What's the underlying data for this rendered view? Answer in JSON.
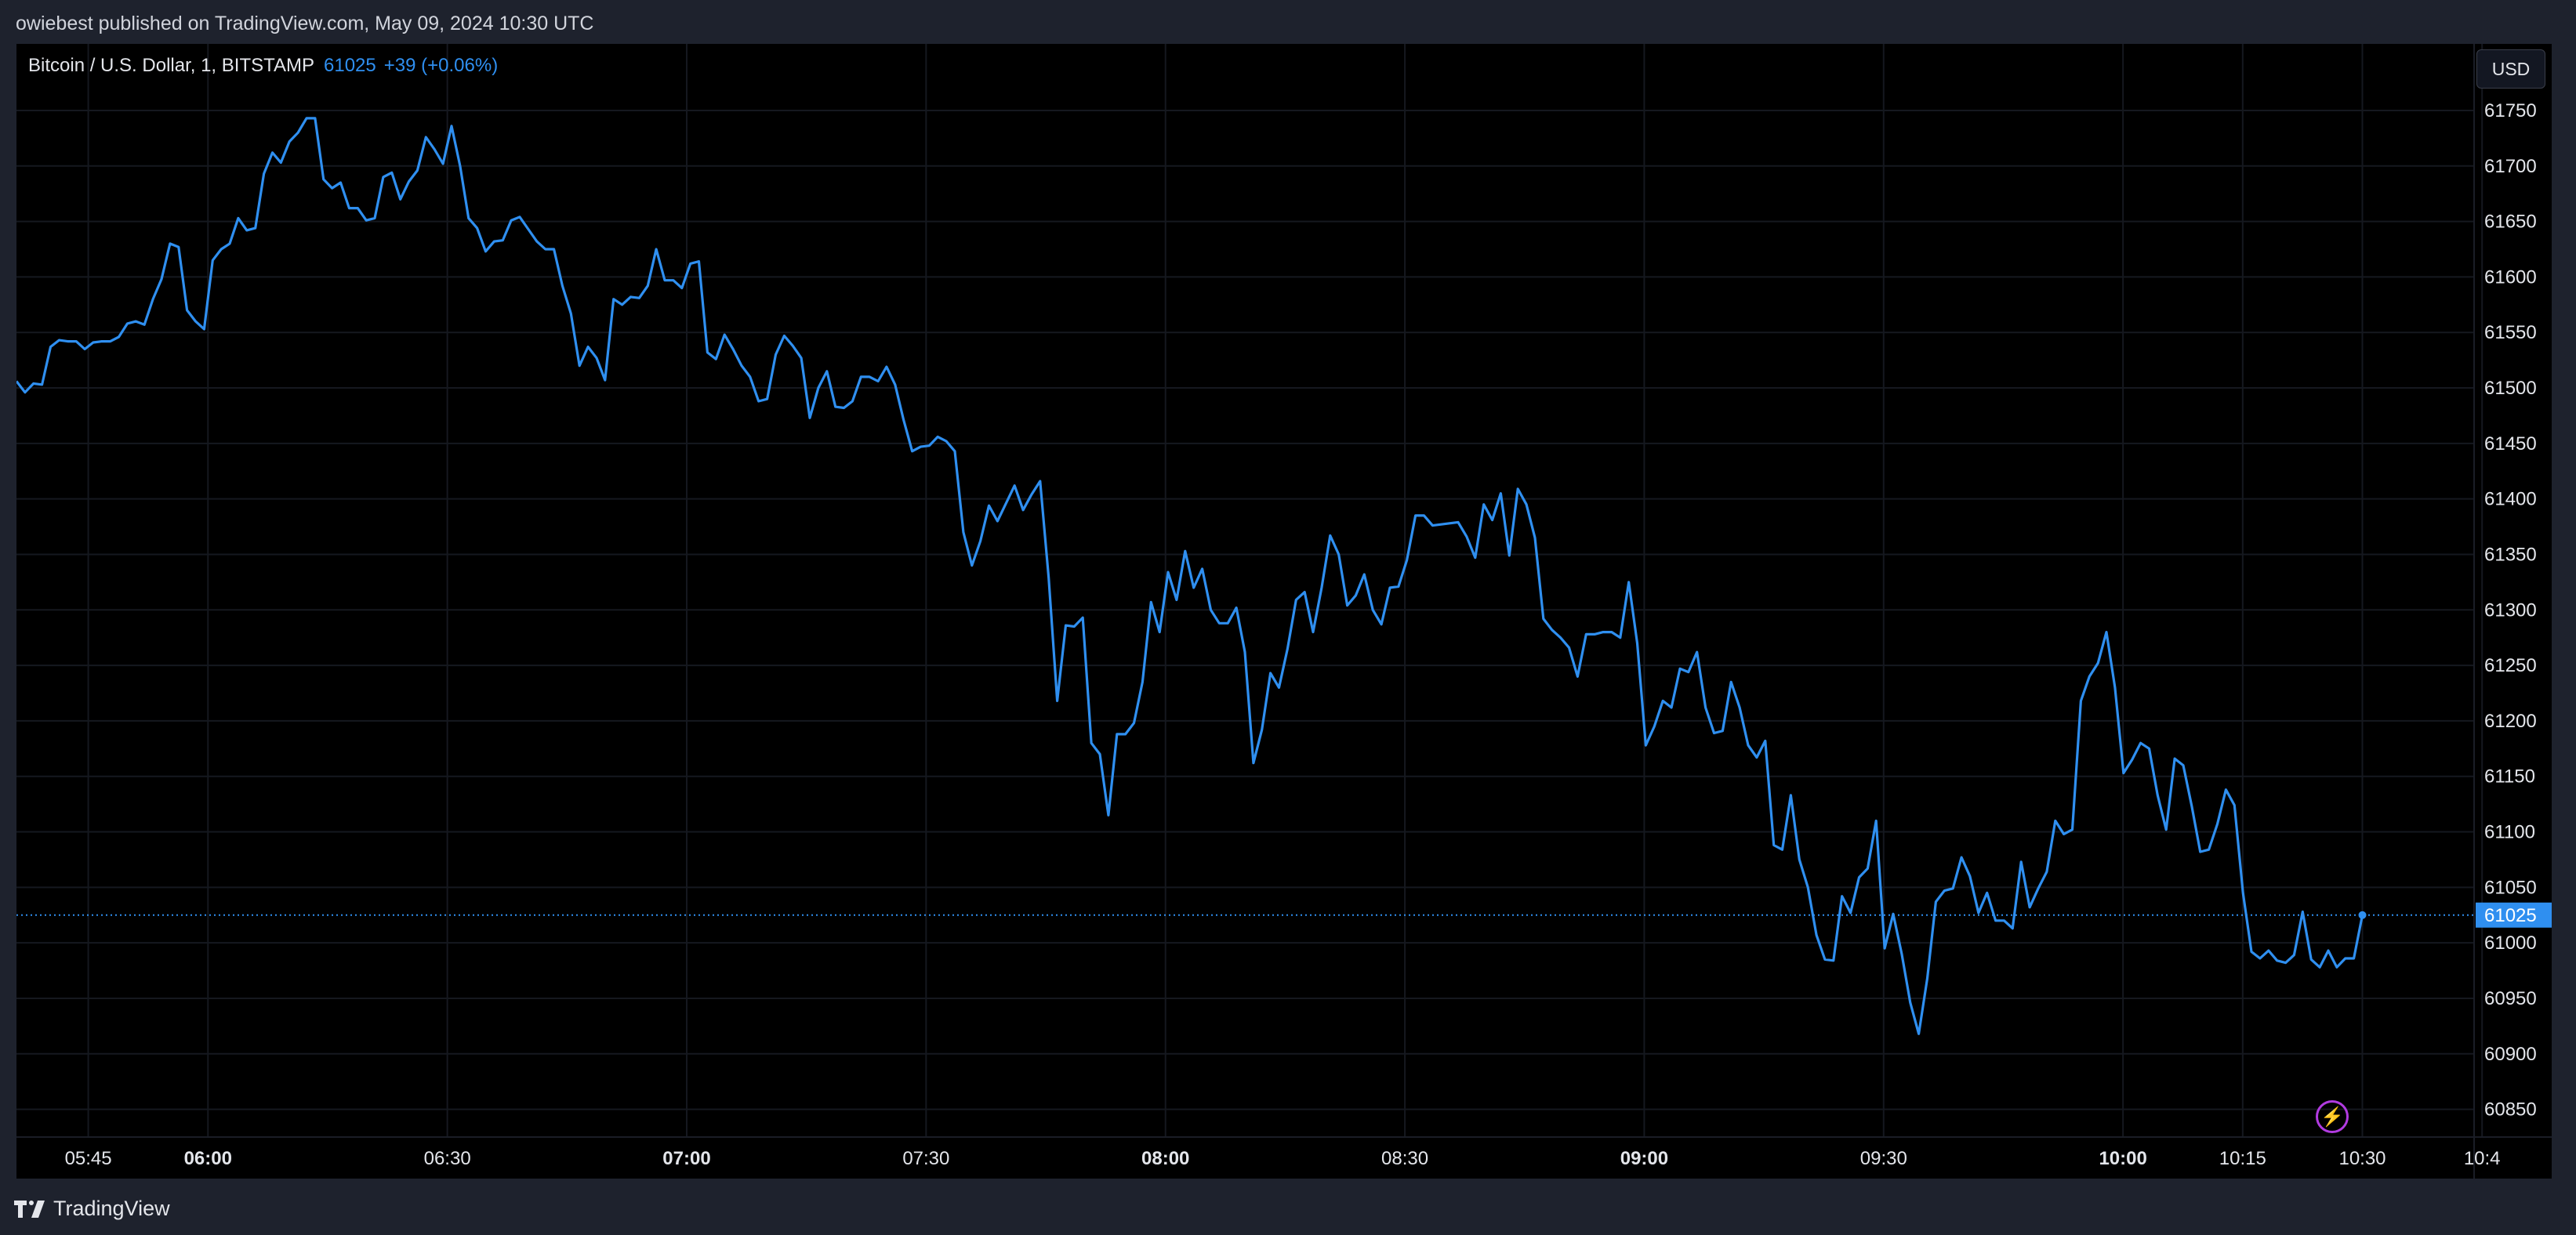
{
  "header": {
    "publish_info": "owiebest published on TradingView.com, May 09, 2024 10:30 UTC"
  },
  "legend": {
    "symbol": "Bitcoin / U.S. Dollar, 1, BITSTAMP",
    "price": "61025",
    "change": "+39 (+0.06%)"
  },
  "currency_button": "USD",
  "footer": {
    "brand": "TradingView"
  },
  "colors": {
    "line": "#2f8ff0",
    "background": "#000000",
    "grid": "#15181f",
    "last_price_tag": "#2f8ff0",
    "alert_icon": "#b13be0"
  },
  "icons": {
    "logo": "tradingview-logo-icon",
    "alert": "lightning-bolt-icon"
  },
  "chart_data": {
    "type": "line",
    "title": "Bitcoin / U.S. Dollar, 1, BITSTAMP",
    "xlabel": "",
    "ylabel": "",
    "grid": true,
    "ylim": [
      60825,
      61810
    ],
    "xlim": [
      "05:36",
      "10:44"
    ],
    "x_ticks": [
      "05:45",
      "06:00",
      "06:30",
      "07:00",
      "07:30",
      "08:00",
      "08:30",
      "09:00",
      "09:30",
      "10:00",
      "10:15",
      "10:30",
      "10:4"
    ],
    "x_ticks_bold": [
      "06:00",
      "07:00",
      "08:00",
      "09:00",
      "10:00"
    ],
    "y_ticks": [
      61750,
      61700,
      61650,
      61600,
      61550,
      61500,
      61450,
      61400,
      61350,
      61300,
      61250,
      61200,
      61150,
      61100,
      61050,
      61000,
      60950,
      60900,
      60850
    ],
    "last_price": 61025,
    "series": [
      {
        "values": [
          61506,
          61496,
          61504,
          61503,
          61537,
          61543,
          61542,
          61542,
          61535,
          61541,
          61542,
          61542,
          61546,
          61558,
          61560,
          61557,
          61580,
          61598,
          61630,
          61627,
          61570,
          61560,
          61553,
          61615,
          61625,
          61630,
          61653,
          61642,
          61644,
          61693,
          61712,
          61703,
          61722,
          61730,
          61743,
          61743,
          61688,
          61680,
          61685,
          61662,
          61662,
          61651,
          61653,
          61690,
          61694,
          61670,
          61686,
          61696,
          61726,
          61715,
          61702,
          61736,
          61700,
          61653,
          61644,
          61623,
          61632,
          61633,
          61651,
          61654,
          61643,
          61632,
          61625,
          61625,
          61592,
          61567,
          61520,
          61537,
          61527,
          61507,
          61580,
          61575,
          61582,
          61581,
          61592,
          61625,
          61597,
          61597,
          61590,
          61612,
          61614,
          61532,
          61526,
          61548,
          61535,
          61520,
          61510,
          61488,
          61490,
          61530,
          61547,
          61538,
          61527,
          61473,
          61500,
          61515,
          61483,
          61482,
          61488,
          61510,
          61510,
          61506,
          61519,
          61503,
          61471,
          61443,
          61447,
          61448,
          61456,
          61452,
          61443,
          61370,
          61340,
          61362,
          61394,
          61380,
          61396,
          61412,
          61390,
          61404,
          61416,
          61329,
          61218,
          61286,
          61285,
          61293,
          61180,
          61170,
          61115,
          61188,
          61188,
          61198,
          61235,
          61307,
          61280,
          61334,
          61309,
          61353,
          61320,
          61337,
          61300,
          61288,
          61288,
          61302,
          61262,
          61162,
          61192,
          61243,
          61230,
          61265,
          61309,
          61316,
          61280,
          61320,
          61367,
          61350,
          61304,
          61313,
          61332,
          61300,
          61287,
          61320,
          61321,
          61345,
          61385,
          61385,
          61376,
          61377,
          61378,
          61379,
          61366,
          61347,
          61395,
          61381,
          61405,
          61349,
          61409,
          61395,
          61365,
          61292,
          61282,
          61275,
          61266,
          61240,
          61278,
          61278,
          61280,
          61280,
          61275,
          61325,
          61270,
          61178,
          61195,
          61218,
          61212,
          61247,
          61244,
          61262,
          61212,
          61189,
          61191,
          61235,
          61212,
          61178,
          61167,
          61182,
          61088,
          61084,
          61133,
          61075,
          61050,
          61007,
          60985,
          60984,
          61042,
          61027,
          61059,
          61067,
          61110,
          60995,
          61026,
          60990,
          60946,
          60918,
          60968,
          61037,
          61047,
          61049,
          61077,
          61060,
          61027,
          61045,
          61020,
          61020,
          61013,
          61073,
          61032,
          61049,
          61064,
          61110,
          61098,
          61102,
          61218,
          61240,
          61252,
          61280,
          61230,
          61153,
          61165,
          61180,
          61175,
          61133,
          61102,
          61166,
          61160,
          61123,
          61082,
          61084,
          61107,
          61138,
          61124,
          61045,
          60992,
          60986,
          60993,
          60984,
          60982,
          60989,
          61028,
          60985,
          60978,
          60993,
          60978,
          60986,
          60986,
          61025
        ]
      }
    ]
  }
}
